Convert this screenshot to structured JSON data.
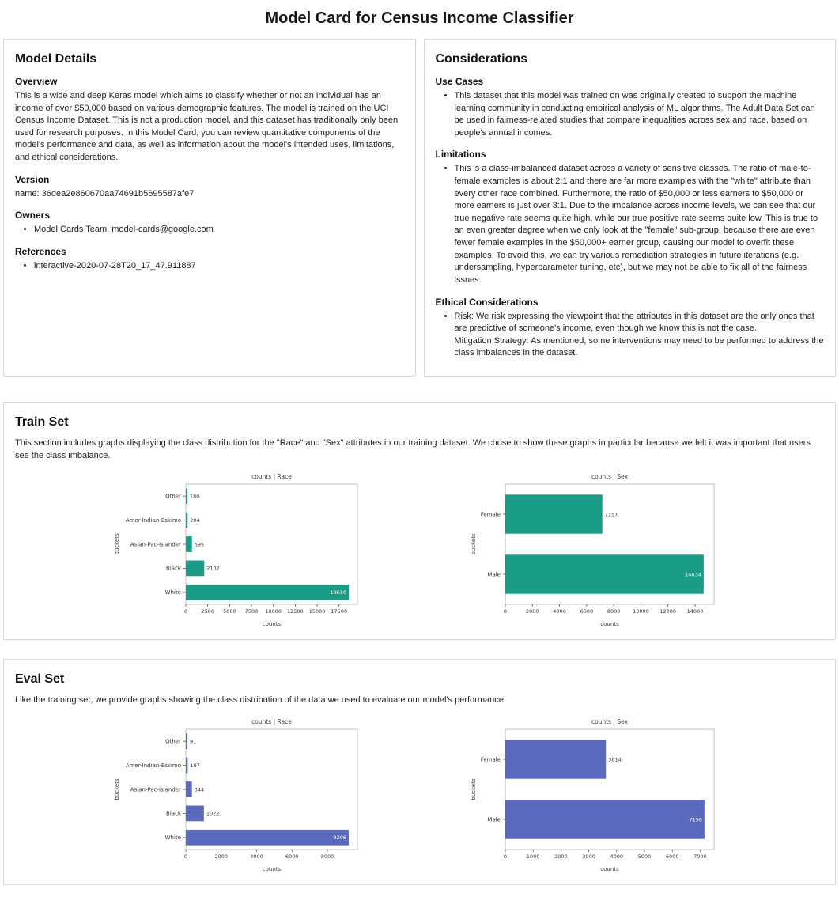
{
  "page": {
    "title": "Model Card for Census Income Classifier"
  },
  "model_details": {
    "heading": "Model Details",
    "overview_heading": "Overview",
    "overview_text": "This is a wide and deep Keras model which aims to classify whether or not an individual has an income of over $50,000 based on various demographic features. The model is trained on the UCI Census Income Dataset. This is not a production model, and this dataset has traditionally only been used for research purposes. In this Model Card, you can review quantitative components of the model's performance and data, as well as information about the model's intended uses, limitations, and ethical considerations.",
    "version_heading": "Version",
    "version_text": "name: 36dea2e860670aa74691b5695587afe7",
    "owners_heading": "Owners",
    "owners": [
      "Model Cards Team, model-cards@google.com"
    ],
    "references_heading": "References",
    "references": [
      "interactive-2020-07-28T20_17_47.911887"
    ]
  },
  "considerations": {
    "heading": "Considerations",
    "use_cases_heading": "Use Cases",
    "use_cases": [
      "This dataset that this model was trained on was originally created to support the machine learning community in conducting empirical analysis of ML algorithms. The Adult Data Set can be used in fairness-related studies that compare inequalities across sex and race, based on people's annual incomes."
    ],
    "limitations_heading": "Limitations",
    "limitations": [
      "This is a class-imbalanced dataset across a variety of sensitive classes. The ratio of male-to-female examples is about 2:1 and there are far more examples with the \"white\" attribute than every other race combined. Furthermore, the ratio of $50,000 or less earners to $50,000 or more earners is just over 3:1. Due to the imbalance across income levels, we can see that our true negative rate seems quite high, while our true positive rate seems quite low. This is true to an even greater degree when we only look at the \"female\" sub-group, because there are even fewer female examples in the $50,000+ earner group, causing our model to overfit these examples. To avoid this, we can try various remediation strategies in future iterations (e.g. undersampling, hyperparameter tuning, etc), but we may not be able to fix all of the fairness issues."
    ],
    "ethical_heading": "Ethical Considerations",
    "ethical_risk": "Risk: We risk expressing the viewpoint that the attributes in this dataset are the only ones that are predictive of someone's income, even though we know this is not the case.",
    "ethical_mitigation": "Mitigation Strategy: As mentioned, some interventions may need to be performed to address the class imbalances in the dataset."
  },
  "train_set": {
    "heading": "Train Set",
    "description": "This section includes graphs displaying the class distribution for the \"Race\" and \"Sex\" attributes in our training dataset. We chose to show these graphs in particular because we felt it was important that users see the class imbalance."
  },
  "eval_set": {
    "heading": "Eval Set",
    "description": "Like the training set, we provide graphs showing the class distribution of the data we used to evaluate our model's performance."
  },
  "chart_data": [
    {
      "type": "bar",
      "orientation": "horizontal",
      "title": "counts | Race",
      "xlabel": "counts",
      "ylabel": "buckets",
      "categories": [
        "Other",
        "Amer-Indian-Eskimo",
        "Asian-Pac-Islander",
        "Black",
        "White"
      ],
      "values": [
        180,
        204,
        695,
        2102,
        18610
      ],
      "xticks": [
        0,
        2500,
        5000,
        7500,
        10000,
        12500,
        15000,
        17500
      ],
      "xlim": [
        0,
        19600
      ],
      "grid": false,
      "legend": false,
      "color": "#1a9c86"
    },
    {
      "type": "bar",
      "orientation": "horizontal",
      "title": "counts | Sex",
      "xlabel": "counts",
      "ylabel": "buckets",
      "categories": [
        "Female",
        "Male"
      ],
      "values": [
        7157,
        14634
      ],
      "xticks": [
        0,
        2000,
        4000,
        6000,
        8000,
        10000,
        12000,
        14000
      ],
      "xlim": [
        0,
        15400
      ],
      "grid": false,
      "legend": false,
      "color": "#1a9c86"
    },
    {
      "type": "bar",
      "orientation": "horizontal",
      "title": "counts | Race",
      "xlabel": "counts",
      "ylabel": "buckets",
      "categories": [
        "Other",
        "Amer-Indian-Eskimo",
        "Asian-Pac-Islander",
        "Black",
        "White"
      ],
      "values": [
        91,
        107,
        344,
        1022,
        9206
      ],
      "xticks": [
        0,
        2000,
        4000,
        6000,
        8000
      ],
      "xlim": [
        0,
        9700
      ],
      "grid": false,
      "legend": false,
      "color": "#5b6abf"
    },
    {
      "type": "bar",
      "orientation": "horizontal",
      "title": "counts | Sex",
      "xlabel": "counts",
      "ylabel": "buckets",
      "categories": [
        "Female",
        "Male"
      ],
      "values": [
        3614,
        7156
      ],
      "xticks": [
        0,
        1000,
        2000,
        3000,
        4000,
        5000,
        6000,
        7000
      ],
      "xlim": [
        0,
        7500
      ],
      "grid": false,
      "legend": false,
      "color": "#5b6abf"
    }
  ]
}
